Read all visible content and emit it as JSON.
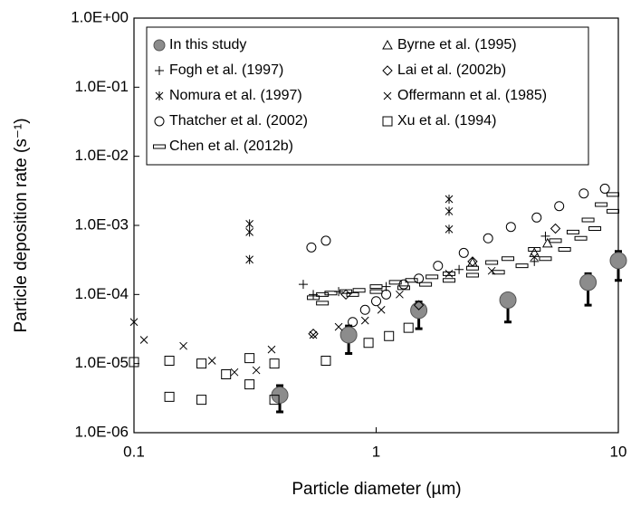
{
  "chart_data": {
    "type": "scatter",
    "xlabel": "Particle diameter (µm)",
    "ylabel": "Particle deposition rate (s⁻¹)",
    "xscale": "log",
    "yscale": "log",
    "xlim": [
      0.1,
      10
    ],
    "xticks": [
      0.1,
      1,
      10
    ],
    "ylim": [
      1e-06,
      1
    ],
    "yticks": [
      {
        "value": 1,
        "label": "1.0E+00"
      },
      {
        "value": 0.1,
        "label": "1.0E-01"
      },
      {
        "value": 0.01,
        "label": "1.0E-02"
      },
      {
        "value": 0.001,
        "label": "1.0E-03"
      },
      {
        "value": 0.0001,
        "label": "1.0E-04"
      },
      {
        "value": 1e-05,
        "label": "1.0E-05"
      },
      {
        "value": 1e-06,
        "label": "1.0E-06"
      }
    ],
    "legend": "upper left",
    "series": [
      {
        "name": "In this study",
        "marker": "filled-circle",
        "color": "#8c8c8c",
        "x": [
          0.4,
          0.77,
          1.5,
          3.5,
          7.5,
          10
        ],
        "values": [
          3.5e-06,
          2.6e-05,
          5.9e-05,
          8.3e-05,
          0.00015,
          0.00031
        ],
        "lower": [
          2e-06,
          1.4e-05,
          3.2e-05,
          4e-05,
          7e-05,
          0.00016
        ],
        "upper": [
          4.8e-06,
          3.5e-05,
          7.8e-05,
          8.3e-05,
          0.0002,
          0.00042
        ]
      },
      {
        "name": "Byrne et al. (1995)",
        "marker": "triangle",
        "color": "#000000",
        "x": [
          2.5,
          4.5,
          5.1
        ],
        "values": [
          0.00029,
          0.0004,
          0.00055
        ]
      },
      {
        "name": "Fogh et al. (1997)",
        "marker": "plus",
        "color": "#000000",
        "x": [
          0.5,
          0.55,
          0.7,
          1.1,
          2.2,
          4.5,
          5.0
        ],
        "values": [
          0.00014,
          0.0001,
          0.00011,
          0.00013,
          0.00023,
          0.0003,
          0.0007
        ]
      },
      {
        "name": "Lai et al. (2002b)",
        "marker": "diamond",
        "color": "#000000",
        "x": [
          0.55,
          0.75,
          1.5,
          2.5,
          5.5
        ],
        "values": [
          2.7e-05,
          0.0001,
          7e-05,
          0.0003,
          0.0009
        ]
      },
      {
        "name": "Nomura et al. (1997)",
        "marker": "star",
        "color": "#000000",
        "x": [
          0.1,
          0.3,
          0.3,
          0.3,
          2,
          2,
          2
        ],
        "values": [
          4e-05,
          0.00105,
          0.0008,
          0.00032,
          0.0024,
          0.0016,
          0.00088
        ]
      },
      {
        "name": "Offermann et al. (1985)",
        "marker": "x",
        "color": "#000000",
        "x": [
          0.11,
          0.16,
          0.21,
          0.26,
          0.32,
          0.37,
          0.55,
          0.7,
          0.9,
          1.05,
          1.25,
          2,
          3,
          4.5
        ],
        "values": [
          2.2e-05,
          1.8e-05,
          1.1e-05,
          7.5e-06,
          8e-06,
          1.6e-05,
          2.6e-05,
          3.4e-05,
          4.2e-05,
          6e-05,
          0.0001,
          0.0002,
          0.00022,
          0.00035
        ]
      },
      {
        "name": "Thatcher et al. (2002)",
        "marker": "circle",
        "color": "#000000",
        "x": [
          0.54,
          0.62,
          0.8,
          0.9,
          1,
          1.1,
          1.3,
          1.5,
          1.8,
          2.3,
          2.9,
          3.6,
          4.6,
          5.7,
          7.2,
          8.8
        ],
        "values": [
          0.00048,
          0.0006,
          4e-05,
          6e-05,
          8e-05,
          0.0001,
          0.00014,
          0.00017,
          0.00026,
          0.0004,
          0.00065,
          0.00095,
          0.0013,
          0.0019,
          0.0029,
          0.0034
        ]
      },
      {
        "name": "Xu et al. (1994)",
        "marker": "square",
        "color": "#000000",
        "x": [
          0.1,
          0.14,
          0.14,
          0.19,
          0.19,
          0.24,
          0.3,
          0.3,
          0.38,
          0.38,
          0.62,
          0.93,
          1.13,
          1.36
        ],
        "values": [
          1.05e-05,
          3.3e-06,
          1.1e-05,
          1e-05,
          3e-06,
          7e-06,
          1.2e-05,
          5e-06,
          3e-06,
          1e-05,
          1.1e-05,
          2e-05,
          2.5e-05,
          3.3e-05
        ]
      },
      {
        "name": "Chen et al. (2012b)",
        "marker": "dash",
        "color": "#000000",
        "x": [
          0.55,
          0.6,
          0.65,
          0.75,
          0.85,
          1,
          1.2,
          1.4,
          1.7,
          2,
          2.5,
          3,
          3.5,
          4.5,
          5.5,
          6.5,
          7.5,
          8.5,
          9.5,
          0.6,
          0.8,
          1,
          1.3,
          1.6,
          2,
          2.5,
          3.2,
          4,
          5,
          6,
          7,
          8,
          9.5
        ],
        "values": [
          9e-05,
          0.0001,
          0.000105,
          0.00011,
          0.000115,
          0.00013,
          0.00015,
          0.00016,
          0.00018,
          0.0002,
          0.00024,
          0.00029,
          0.00033,
          0.00045,
          0.0006,
          0.0008,
          0.0012,
          0.002,
          0.0028,
          7.5e-05,
          0.0001,
          0.00011,
          0.000125,
          0.00014,
          0.00016,
          0.00019,
          0.00021,
          0.00026,
          0.00033,
          0.00045,
          0.00065,
          0.0009,
          0.0016
        ]
      }
    ]
  }
}
